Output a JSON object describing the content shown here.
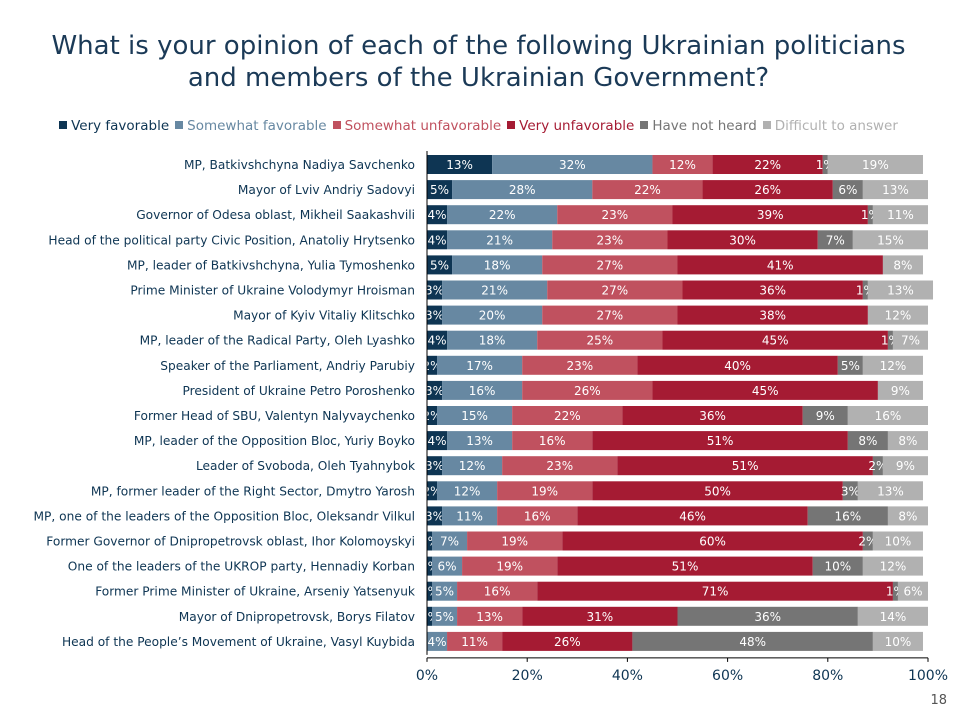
{
  "page": {
    "number": "18"
  },
  "chart_data": {
    "type": "bar",
    "orientation": "horizontal",
    "stacked": true,
    "title": "What is your opinion of each of the following Ukrainian politicians and members of the Ukrainian Government?",
    "title_lines": [
      "What is your opinion of each of the following Ukrainian politicians",
      "and members of the Ukrainian Government?"
    ],
    "xlim": [
      0,
      100
    ],
    "x_ticks": [
      "0%",
      "20%",
      "40%",
      "60%",
      "80%",
      "100%"
    ],
    "legend_position": "top-center",
    "categories": [
      "MP, Batkivshchyna Nadiya Savchenko",
      "Mayor of Lviv Andriy Sadovyi",
      "Governor of Odesa oblast, Mikheil Saakashvili",
      "Head of the political party Civic Position, Anatoliy Hrytsenko",
      "MP, leader of Batkivshchyna, Yulia Tymoshenko",
      "Prime Minister of Ukraine Volodymyr Hroisman",
      "Mayor of Kyiv Vitaliy Klitschko",
      "MP, leader of the Radical Party, Oleh Lyashko",
      "Speaker of the Parliament, Andriy Parubiy",
      "President of Ukraine Petro Poroshenko",
      "Former Head of SBU, Valentyn Nalyvaychenko",
      "MP, leader of the Opposition Bloc, Yuriy Boyko",
      "Leader of Svoboda, Oleh Tyahnybok",
      "MP, former leader of the Right Sector, Dmytro Yarosh",
      "MP, one of the leaders of the Opposition Bloc, Oleksandr Vilkul",
      "Former Governor of Dnipropetrovsk oblast, Ihor Kolomoyskyi",
      "One of the leaders of the UKROP party, Hennadiy Korban",
      "Former Prime Minister of Ukraine, Arseniy Yatsenyuk",
      "Mayor of Dnipropetrovsk, Borys Filatov",
      "Head of the People’s Movement of Ukraine, Vasyl Kuybida"
    ],
    "series": [
      {
        "name": "Very favorable",
        "color": "#0e3553",
        "label_color": "#ffffff",
        "values": [
          13,
          5,
          4,
          4,
          5,
          3,
          3,
          4,
          2,
          3,
          2,
          4,
          3,
          2,
          3,
          1,
          1,
          1,
          1,
          0
        ]
      },
      {
        "name": "Somewhat favorable",
        "color": "#6788a2",
        "label_color": "#ffffff",
        "values": [
          32,
          28,
          22,
          21,
          18,
          21,
          20,
          18,
          17,
          16,
          15,
          13,
          12,
          12,
          11,
          7,
          6,
          5,
          5,
          4
        ]
      },
      {
        "name": "Somewhat unfavorable",
        "color": "#c0515f",
        "label_color": "#ffffff",
        "values": [
          12,
          22,
          23,
          23,
          27,
          27,
          27,
          25,
          23,
          26,
          22,
          16,
          23,
          19,
          16,
          19,
          19,
          16,
          13,
          11
        ]
      },
      {
        "name": "Very unfavorable",
        "color": "#a51b33",
        "label_color": "#ffffff",
        "values": [
          22,
          26,
          39,
          30,
          41,
          36,
          38,
          45,
          40,
          45,
          36,
          51,
          51,
          50,
          46,
          60,
          51,
          71,
          31,
          26
        ]
      },
      {
        "name": "Have not heard",
        "color": "#757575",
        "label_color": "#ffffff",
        "values": [
          1,
          6,
          1,
          7,
          0,
          1,
          0,
          1,
          5,
          0,
          9,
          8,
          2,
          3,
          16,
          2,
          10,
          1,
          36,
          48
        ]
      },
      {
        "name": "Difficult to answer",
        "color": "#b1b1b1",
        "label_color": "#ffffff",
        "values": [
          19,
          13,
          11,
          15,
          8,
          13,
          12,
          7,
          12,
          9,
          16,
          8,
          9,
          13,
          8,
          10,
          12,
          6,
          14,
          10
        ]
      }
    ]
  }
}
